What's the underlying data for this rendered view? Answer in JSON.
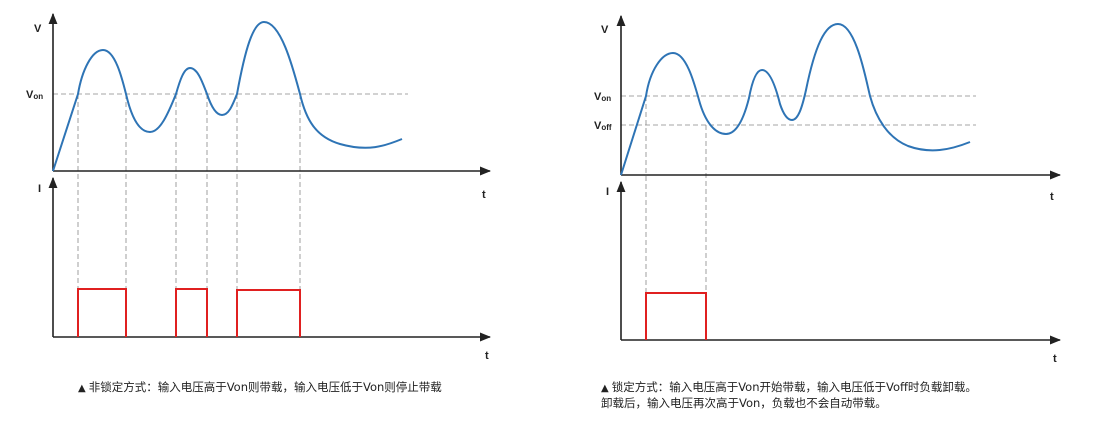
{
  "colors": {
    "voltage_curve": "#2e74b5",
    "current_pulse": "#e02020",
    "axis": "#222222",
    "guide": "#888888"
  },
  "left_diagram": {
    "voltage_axis_label": "V",
    "current_axis_label": "I",
    "time_axis_label": "t",
    "threshold_labels": [
      {
        "main": "V",
        "sub": "on"
      }
    ],
    "caption_marker": "▲",
    "caption_lines": [
      "非锁定方式：输入电压高于Von则带载，输入电压低于Von则停止带载"
    ]
  },
  "right_diagram": {
    "voltage_axis_label": "V",
    "current_axis_label": "I",
    "time_axis_label": "t",
    "threshold_labels": [
      {
        "main": "V",
        "sub": "on"
      },
      {
        "main": "V",
        "sub": "off"
      }
    ],
    "caption_marker": "▲",
    "caption_lines": [
      "锁定方式：输入电压高于Von开始带载，输入电压低于Voff时负载卸载。",
      "卸载后，输入电压再次高于Von，负载也不会自动带载。"
    ]
  }
}
